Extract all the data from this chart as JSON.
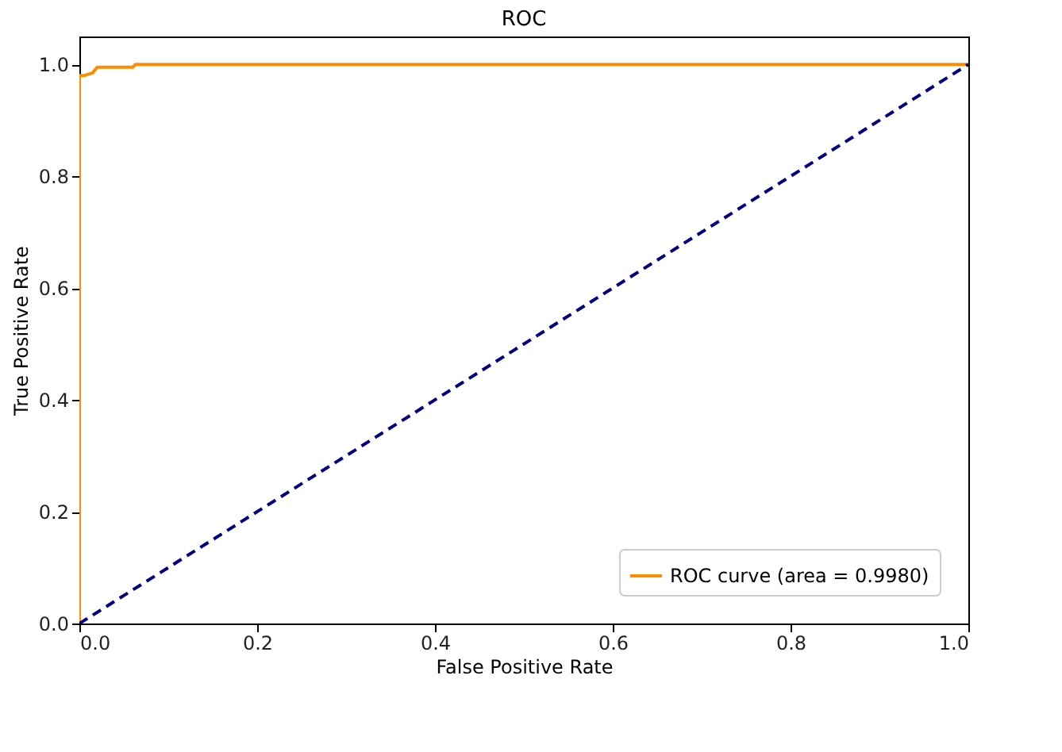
{
  "chart_data": {
    "type": "line",
    "title": "ROC",
    "xlabel": "False Positive Rate",
    "ylabel": "True Positive Rate",
    "xlim": [
      0,
      1
    ],
    "ylim": [
      0,
      1.05
    ],
    "xticks": [
      {
        "value": 0,
        "label": "0.0"
      },
      0.2,
      0.4,
      0.6,
      0.8,
      {
        "value": 1,
        "label": "1.0"
      }
    ],
    "yticks": [
      {
        "value": 0,
        "label": "0.0"
      },
      0.2,
      0.4,
      0.6,
      0.8,
      {
        "value": 1,
        "label": "1.0"
      }
    ],
    "grid": false,
    "legend": "bottom right",
    "marker": "none",
    "series": [
      {
        "name": "ROC curve (area = 0.9980)",
        "color": "#ff8c00",
        "line_style": "solid",
        "x": [
          0,
          0,
          0.005,
          0.015,
          0.02,
          0.06,
          0.063,
          1
        ],
        "values": [
          0,
          0.98,
          0.98,
          0.985,
          0.995,
          0.995,
          1.0,
          1.0
        ]
      },
      {
        "color": "#000080",
        "line_style": "dashed",
        "x": [
          0,
          1
        ],
        "values": [
          0,
          1
        ]
      }
    ]
  }
}
